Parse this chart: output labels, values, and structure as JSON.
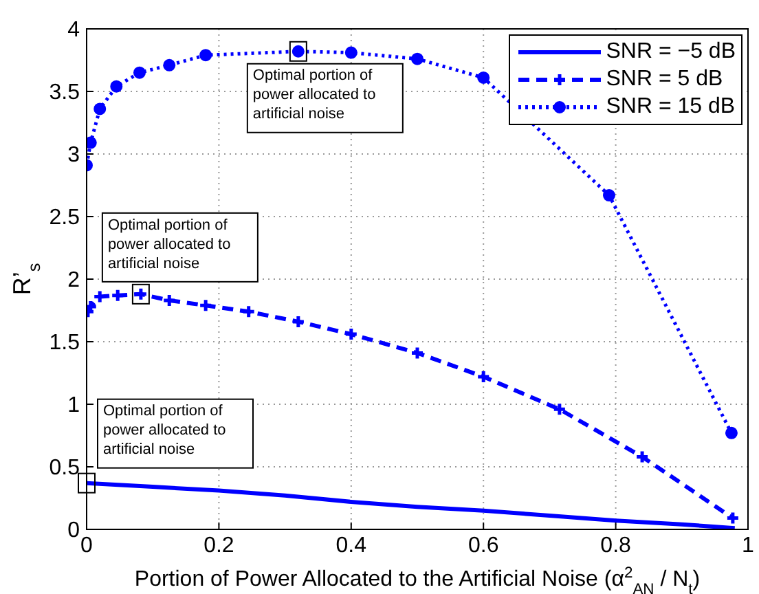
{
  "chart_data": {
    "type": "line",
    "xlabel": "Portion of Power Allocated to the Artificial Noise (α$^{2}$$_{AN}$ / N$_{t}$)",
    "ylabel": "R’$_{s}$",
    "xlim": [
      0,
      1
    ],
    "ylim": [
      0,
      4
    ],
    "xticks": [
      0,
      0.2,
      0.4,
      0.6,
      0.8,
      1
    ],
    "yticks": [
      0,
      0.5,
      1,
      1.5,
      2,
      2.5,
      3,
      3.5,
      4
    ],
    "grid": true,
    "legend": "top right",
    "series": [
      {
        "name": "SNR = −5 dB",
        "color": "#0000ff",
        "line_style": "solid",
        "marker": "none",
        "x": [
          0,
          0.1,
          0.2,
          0.3,
          0.4,
          0.5,
          0.6,
          0.7,
          0.8,
          0.9,
          0.98
        ],
        "values": [
          0.37,
          0.34,
          0.31,
          0.27,
          0.22,
          0.18,
          0.15,
          0.11,
          0.07,
          0.04,
          0.01
        ]
      },
      {
        "name": "SNR = 5 dB",
        "color": "#0000ff",
        "line_style": "dashed",
        "marker": "cross",
        "x": [
          0.002,
          0.006,
          0.02,
          0.047,
          0.082,
          0.125,
          0.18,
          0.245,
          0.32,
          0.4,
          0.5,
          0.6,
          0.715,
          0.84,
          0.977
        ],
        "values": [
          1.74,
          1.78,
          1.86,
          1.87,
          1.88,
          1.83,
          1.79,
          1.74,
          1.66,
          1.56,
          1.41,
          1.22,
          0.96,
          0.58,
          0.09
        ]
      },
      {
        "name": "SNR = 15 dB",
        "color": "#0000ff",
        "line_style": "dotted",
        "marker": "circle",
        "x": [
          0,
          0.006,
          0.02,
          0.045,
          0.08,
          0.125,
          0.18,
          0.32,
          0.4,
          0.5,
          0.6,
          0.79,
          0.975
        ],
        "values": [
          2.91,
          3.09,
          3.36,
          3.54,
          3.65,
          3.71,
          3.79,
          3.82,
          3.81,
          3.76,
          3.61,
          2.67,
          0.77
        ]
      }
    ],
    "annotations": [
      {
        "text": "Optimal portion of power allocated to artificial noise",
        "x": 0.32,
        "y": 3.82
      },
      {
        "text": "Optimal portion of power allocated to artificial noise",
        "x": 0.082,
        "y": 1.88
      },
      {
        "text": "Optimal portion of power allocated to artificial noise",
        "x": 0,
        "y": 0.37
      }
    ]
  }
}
